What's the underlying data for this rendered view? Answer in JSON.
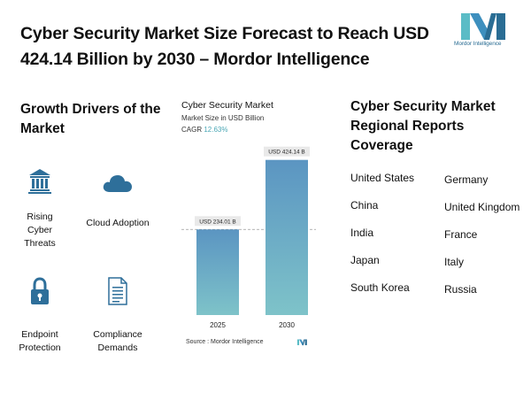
{
  "title": "Cyber Security Market Size Forecast to Reach USD 424.14 Billion by 2030 – Mordor Intelligence",
  "logo": {
    "text": "Mordor Intelligence"
  },
  "growth_drivers": {
    "title": "Growth Drivers of the Market",
    "items": [
      {
        "label": "Rising Cyber Threats",
        "icon": "bank-icon"
      },
      {
        "label": "Cloud Adoption",
        "icon": "cloud-icon"
      },
      {
        "label": "Endpoint Protection",
        "icon": "lock-icon"
      },
      {
        "label": "Compliance Demands",
        "icon": "document-icon"
      }
    ]
  },
  "chart_data": {
    "type": "bar",
    "title": "Cyber Security Market",
    "subtitle": "Market Size in USD Billion",
    "cagr_label": "CAGR",
    "cagr_value": "12.63%",
    "categories": [
      "2025",
      "2030"
    ],
    "values": [
      234.01,
      424.14
    ],
    "data_labels": [
      "USD 234.01 B",
      "USD 424.14 B"
    ],
    "ylim": [
      0,
      450
    ],
    "reference_line_value": 234.01,
    "colors": {
      "bar_top": "#5b95c2",
      "bar_bottom": "#7ec3c9",
      "label_bg": "#e9e9e9",
      "cagr": "#4aa7b5"
    },
    "source": "Source : Mordor Intelligence"
  },
  "regional": {
    "title": "Cyber Security Market Regional Reports Coverage",
    "left": [
      "United States",
      "China",
      "India",
      "Japan",
      "South Korea"
    ],
    "right": [
      "Germany",
      "United Kingdom",
      "France",
      "Italy",
      "Russia"
    ]
  },
  "colors": {
    "icon": "#2e6f9a",
    "text": "#111111"
  }
}
